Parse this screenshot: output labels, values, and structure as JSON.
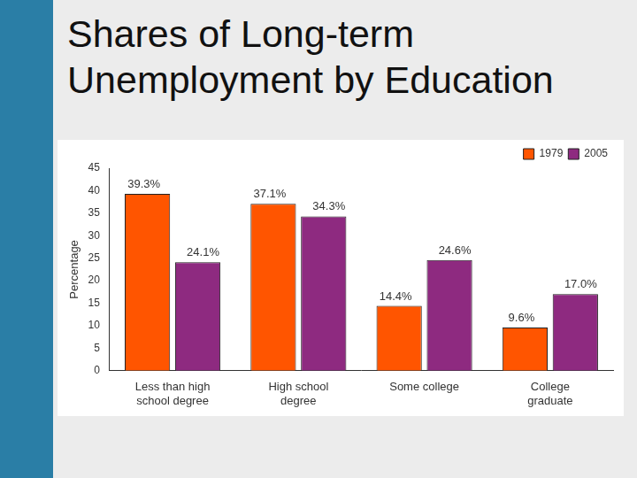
{
  "chart_data": {
    "type": "bar",
    "title": "Shares of Long-term Unemployment by Education",
    "y_label": "Percentage",
    "categories": [
      [
        "Less than high",
        "school degree"
      ],
      [
        "High school",
        "degree"
      ],
      "Some college",
      [
        "College",
        "graduate"
      ]
    ],
    "series": [
      {
        "name": "1979",
        "color": "#ff5500",
        "values": [
          39.3,
          37.1,
          14.4,
          9.6
        ],
        "value_labels": [
          "39.3%",
          "37.1%",
          "14.4%",
          "9.6%"
        ]
      },
      {
        "name": "2005",
        "color": "#8e2a80",
        "values": [
          24.1,
          34.3,
          24.6,
          17.0
        ],
        "value_labels": [
          "24.1%",
          "34.3%",
          "24.6%",
          "17.0%"
        ]
      }
    ],
    "ylim": [
      0,
      45
    ],
    "yticks": [
      0,
      5,
      10,
      15,
      20,
      25,
      30,
      35,
      40,
      45
    ],
    "grid": false,
    "legend": "upper right",
    "data_labels": true
  }
}
